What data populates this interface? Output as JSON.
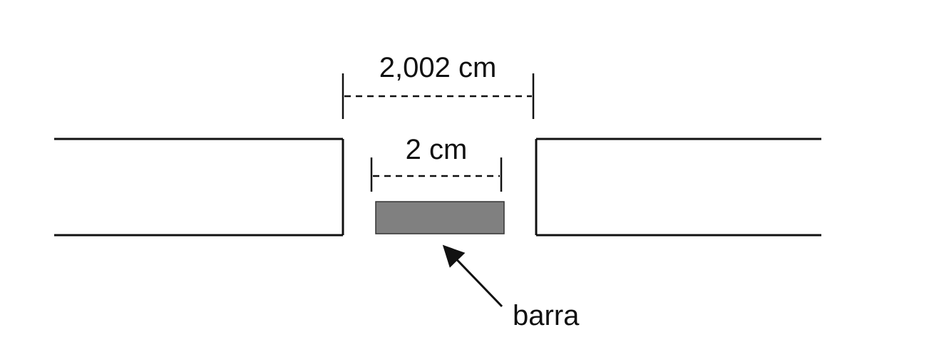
{
  "labels": {
    "gap_width": "2,002 cm",
    "bar_width": "2 cm",
    "bar_name": "barra"
  },
  "colors": {
    "stroke": "#111111",
    "bar_fill": "#808080",
    "background": "#ffffff"
  }
}
